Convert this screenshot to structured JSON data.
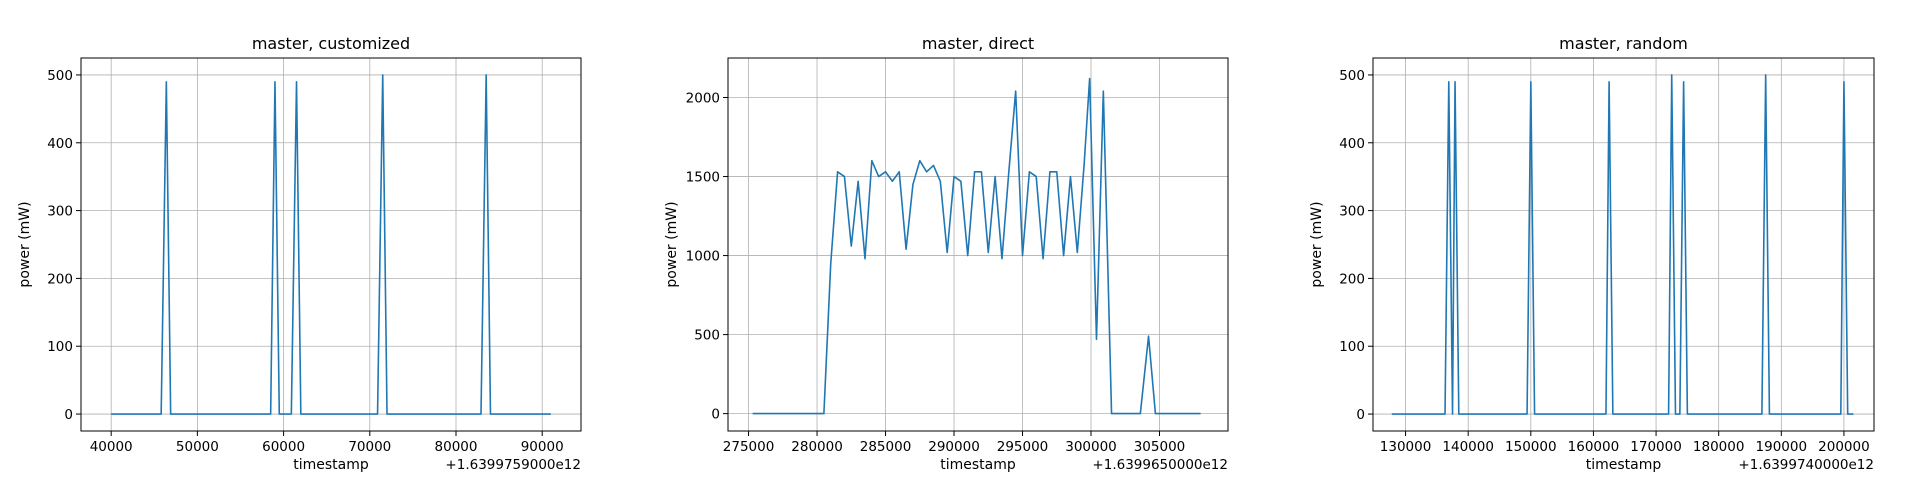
{
  "chart_data": [
    {
      "type": "line",
      "title": "master, customized",
      "xlabel": "timestamp",
      "ylabel": "power (mW)",
      "offset_label": "+1.6399759000e12",
      "xlim": [
        36500,
        94500
      ],
      "ylim": [
        -25,
        525
      ],
      "xticks": [
        40000,
        50000,
        60000,
        70000,
        80000,
        90000
      ],
      "yticks": [
        0,
        100,
        200,
        300,
        400,
        500
      ],
      "xtick_labels": [
        "40000",
        "50000",
        "60000",
        "70000",
        "80000",
        "90000"
      ],
      "ytick_labels": [
        "0",
        "100",
        "200",
        "300",
        "400",
        "500"
      ],
      "grid": true,
      "color": "#1f77b4",
      "points": [
        [
          40000,
          0
        ],
        [
          45800,
          0
        ],
        [
          46400,
          490
        ],
        [
          46900,
          0
        ],
        [
          58500,
          0
        ],
        [
          59000,
          490
        ],
        [
          59500,
          0
        ],
        [
          60900,
          0
        ],
        [
          61500,
          490
        ],
        [
          62000,
          0
        ],
        [
          70900,
          0
        ],
        [
          71500,
          500
        ],
        [
          72000,
          0
        ],
        [
          82900,
          0
        ],
        [
          83500,
          500
        ],
        [
          84000,
          0
        ],
        [
          91000,
          0
        ]
      ]
    },
    {
      "type": "line",
      "title": "master, direct",
      "xlabel": "timestamp",
      "ylabel": "power (mW)",
      "offset_label": "+1.6399650000e12",
      "xlim": [
        273500,
        310000
      ],
      "ylim": [
        -110,
        2250
      ],
      "xticks": [
        275000,
        280000,
        285000,
        290000,
        295000,
        300000,
        305000
      ],
      "yticks": [
        0,
        500,
        1000,
        1500,
        2000
      ],
      "xtick_labels": [
        "275000",
        "280000",
        "285000",
        "290000",
        "295000",
        "300000",
        "305000"
      ],
      "ytick_labels": [
        "0",
        "500",
        "1000",
        "1500",
        "2000"
      ],
      "grid": true,
      "color": "#1f77b4",
      "points": [
        [
          275300,
          0
        ],
        [
          280500,
          0
        ],
        [
          281000,
          950
        ],
        [
          281500,
          1530
        ],
        [
          282000,
          1500
        ],
        [
          282500,
          1060
        ],
        [
          283000,
          1470
        ],
        [
          283500,
          980
        ],
        [
          284000,
          1600
        ],
        [
          284500,
          1500
        ],
        [
          285000,
          1530
        ],
        [
          285500,
          1470
        ],
        [
          286000,
          1530
        ],
        [
          286500,
          1040
        ],
        [
          287000,
          1450
        ],
        [
          287500,
          1600
        ],
        [
          288000,
          1530
        ],
        [
          288500,
          1570
        ],
        [
          289000,
          1470
        ],
        [
          289500,
          1020
        ],
        [
          290000,
          1500
        ],
        [
          290500,
          1470
        ],
        [
          291000,
          1000
        ],
        [
          291500,
          1530
        ],
        [
          292000,
          1530
        ],
        [
          292500,
          1020
        ],
        [
          293000,
          1500
        ],
        [
          293500,
          980
        ],
        [
          294000,
          1530
        ],
        [
          294500,
          2040
        ],
        [
          295000,
          1000
        ],
        [
          295500,
          1530
        ],
        [
          296000,
          1500
        ],
        [
          296500,
          980
        ],
        [
          297000,
          1530
        ],
        [
          297500,
          1530
        ],
        [
          298000,
          1000
        ],
        [
          298500,
          1500
        ],
        [
          299000,
          1020
        ],
        [
          299500,
          1580
        ],
        [
          299900,
          2120
        ],
        [
          300400,
          470
        ],
        [
          300900,
          2040
        ],
        [
          301500,
          0
        ],
        [
          303600,
          0
        ],
        [
          304200,
          490
        ],
        [
          304700,
          0
        ],
        [
          308000,
          0
        ]
      ]
    },
    {
      "type": "line",
      "title": "master, random",
      "xlabel": "timestamp",
      "ylabel": "power (mW)",
      "offset_label": "+1.6399740000e12",
      "xlim": [
        124800,
        204800
      ],
      "ylim": [
        -25,
        525
      ],
      "xticks": [
        130000,
        140000,
        150000,
        160000,
        170000,
        180000,
        190000,
        200000
      ],
      "yticks": [
        0,
        100,
        200,
        300,
        400,
        500
      ],
      "xtick_labels": [
        "130000",
        "140000",
        "150000",
        "160000",
        "170000",
        "180000",
        "190000",
        "200000"
      ],
      "ytick_labels": [
        "0",
        "100",
        "200",
        "300",
        "400",
        "500"
      ],
      "grid": true,
      "color": "#1f77b4",
      "points": [
        [
          127800,
          0
        ],
        [
          136300,
          0
        ],
        [
          136900,
          490
        ],
        [
          137500,
          0
        ],
        [
          137900,
          490
        ],
        [
          138500,
          0
        ],
        [
          149400,
          0
        ],
        [
          150000,
          490
        ],
        [
          150600,
          0
        ],
        [
          162000,
          0
        ],
        [
          162500,
          490
        ],
        [
          163100,
          0
        ],
        [
          172000,
          0
        ],
        [
          172500,
          500
        ],
        [
          173100,
          0
        ],
        [
          173800,
          0
        ],
        [
          174400,
          490
        ],
        [
          175000,
          0
        ],
        [
          186900,
          0
        ],
        [
          187500,
          500
        ],
        [
          188100,
          0
        ],
        [
          199500,
          0
        ],
        [
          200000,
          490
        ],
        [
          200600,
          0
        ],
        [
          201500,
          0
        ]
      ]
    }
  ]
}
